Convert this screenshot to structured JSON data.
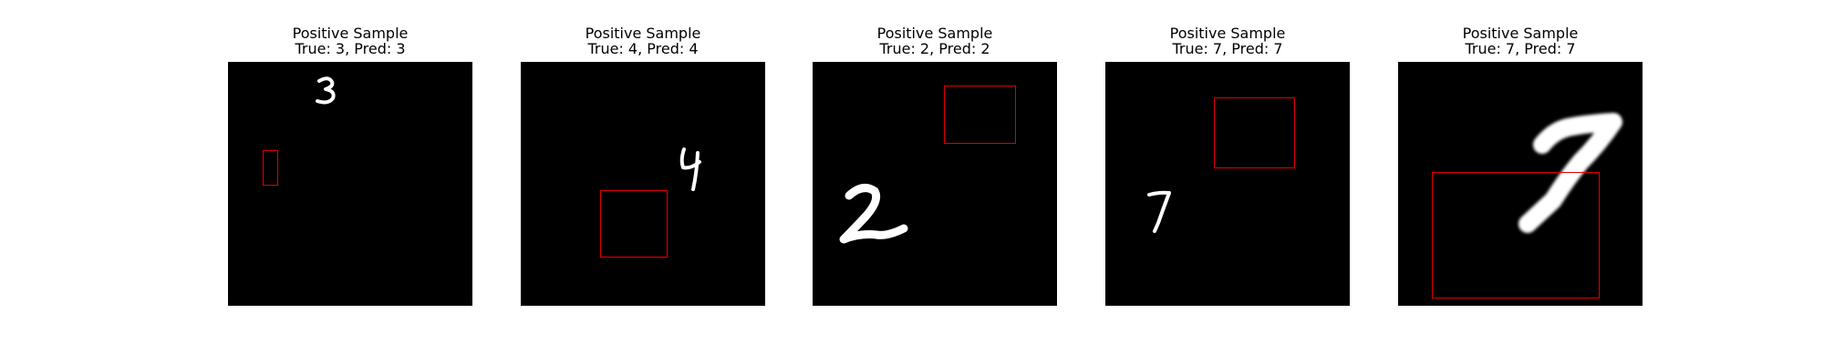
{
  "colors": {
    "background": "#ffffff",
    "image_bg": "#000000",
    "digit": "#ffffff",
    "box": "#e00000"
  },
  "panels": [
    {
      "title": "Positive Sample",
      "subtitle": "True: 3, Pred: 3",
      "digit": "3"
    },
    {
      "title": "Positive Sample",
      "subtitle": "True: 4, Pred: 4",
      "digit": "4"
    },
    {
      "title": "Positive Sample",
      "subtitle": "True: 2, Pred: 2",
      "digit": "2"
    },
    {
      "title": "Positive Sample",
      "subtitle": "True: 7, Pred: 7",
      "digit": "7"
    },
    {
      "title": "Positive Sample",
      "subtitle": "True: 7, Pred: 7",
      "digit": "7"
    }
  ]
}
